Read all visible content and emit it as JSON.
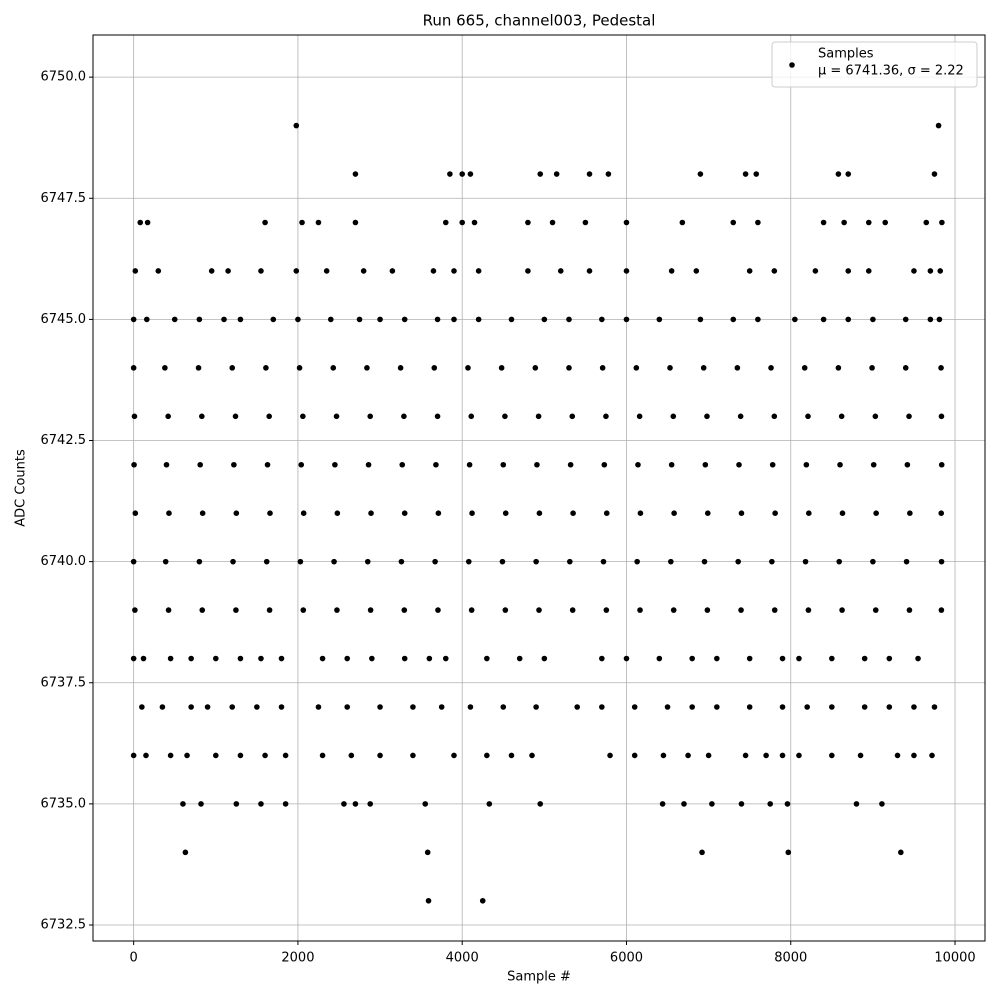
{
  "chart_data": {
    "type": "scatter",
    "title": "Run 665, channel003, Pedestal",
    "xlabel": "Sample #",
    "ylabel": "ADC Counts",
    "xlim": [
      -495,
      10365
    ],
    "ylim": [
      6732.17,
      6750.87
    ],
    "xticks": [
      0,
      2000,
      4000,
      6000,
      8000,
      10000
    ],
    "yticks": [
      6732.5,
      {
        "value": 6735,
        "label": "6735.0"
      },
      6737.5,
      {
        "value": 6740,
        "label": "6740.0"
      },
      6742.5,
      {
        "value": 6745,
        "label": "6745.0"
      },
      6747.5,
      {
        "value": 6750,
        "label": "6750.0"
      }
    ],
    "grid": true,
    "legend": "upper right",
    "legend_note": "μ = 6741.36, σ = 2.22",
    "series": [
      {
        "name": "Samples",
        "color": "#000000",
        "x": [
          0,
          380,
          790,
          1200,
          1610,
          2020,
          2430,
          2840,
          3250,
          3660,
          4070,
          4480,
          4890,
          5300,
          5710,
          6120,
          6530,
          6940,
          7350,
          7760,
          8170,
          8580,
          8990,
          9400,
          9830,
          10,
          420,
          830,
          1240,
          1650,
          2060,
          2470,
          2880,
          3290,
          3700,
          4110,
          4520,
          4930,
          5340,
          5750,
          6160,
          6570,
          6980,
          7390,
          7800,
          8210,
          8620,
          9030,
          9440,
          9835,
          5,
          400,
          810,
          1220,
          1630,
          2040,
          2450,
          2860,
          3270,
          3680,
          4090,
          4500,
          4910,
          5320,
          5730,
          6140,
          6550,
          6960,
          7370,
          7780,
          8190,
          8600,
          9010,
          9420,
          9838,
          20,
          430,
          840,
          1250,
          1660,
          2070,
          2480,
          2890,
          3300,
          3710,
          4120,
          4530,
          4940,
          5350,
          5760,
          6170,
          6580,
          6990,
          7400,
          7810,
          8220,
          8630,
          9040,
          9450,
          9832,
          0,
          390,
          800,
          1210,
          1620,
          2030,
          2440,
          2850,
          3260,
          3670,
          4080,
          4490,
          4900,
          5310,
          5720,
          6130,
          6540,
          6950,
          7360,
          7770,
          8180,
          8590,
          9000,
          9410,
          9836,
          15,
          425,
          835,
          1245,
          1655,
          2065,
          2475,
          2885,
          3295,
          3705,
          4115,
          4525,
          4935,
          5345,
          5755,
          6165,
          6575,
          6985,
          7395,
          7805,
          8215,
          8625,
          9035,
          9445,
          9834,
          0,
          120,
          450,
          700,
          1000,
          1300,
          1550,
          1800,
          2300,
          2600,
          2900,
          3300,
          3600,
          3800,
          4300,
          4700,
          5000,
          5700,
          6000,
          6400,
          6800,
          7100,
          7500,
          7900,
          8100,
          8500,
          8900,
          9200,
          9550,
          0,
          160,
          500,
          800,
          1100,
          1300,
          1700,
          2000,
          2400,
          2750,
          3000,
          3300,
          3700,
          3900,
          4200,
          4600,
          5000,
          5300,
          5700,
          6000,
          6400,
          6900,
          7300,
          7600,
          8050,
          8400,
          8700,
          9000,
          9400,
          9700,
          9810,
          20,
          300,
          950,
          1150,
          1550,
          1980,
          2350,
          2800,
          3150,
          3650,
          3900,
          4200,
          4800,
          5200,
          5550,
          6000,
          6550,
          6850,
          7500,
          7800,
          8300,
          8700,
          8950,
          9500,
          9700,
          9820,
          100,
          350,
          700,
          900,
          1200,
          1500,
          1800,
          2250,
          2600,
          3000,
          3400,
          3750,
          4100,
          4500,
          4900,
          5400,
          5700,
          6100,
          6500,
          6800,
          7100,
          7500,
          7900,
          8200,
          8500,
          8900,
          9200,
          9500,
          9750,
          0,
          150,
          450,
          650,
          1000,
          1300,
          1600,
          1850,
          2300,
          2650,
          3000,
          3400,
          3900,
          4300,
          4600,
          4850,
          5800,
          6100,
          6450,
          6750,
          7000,
          7450,
          7700,
          7900,
          8100,
          8500,
          8850,
          9300,
          9500,
          9720,
          80,
          170,
          1600,
          2050,
          2250,
          2700,
          3800,
          4000,
          4150,
          4800,
          5100,
          5500,
          6000,
          6680,
          7300,
          7600,
          8400,
          8650,
          8950,
          9150,
          9650,
          9840,
          2700,
          3850,
          4000,
          4100,
          4950,
          5150,
          5550,
          5780,
          6900,
          7450,
          7580,
          8580,
          8700,
          9750,
          600,
          820,
          1250,
          1550,
          1850,
          2560,
          2700,
          2880,
          3550,
          4330,
          4950,
          6440,
          6700,
          7040,
          7400,
          7750,
          7960,
          8800,
          9110,
          630,
          3580,
          6920,
          7970,
          9340,
          3590,
          4250,
          1980,
          9800
        ],
        "values": [
          6744,
          6744,
          6744,
          6744,
          6744,
          6744,
          6744,
          6744,
          6744,
          6744,
          6744,
          6744,
          6744,
          6744,
          6744,
          6744,
          6744,
          6744,
          6744,
          6744,
          6744,
          6744,
          6744,
          6744,
          6744,
          6743,
          6743,
          6743,
          6743,
          6743,
          6743,
          6743,
          6743,
          6743,
          6743,
          6743,
          6743,
          6743,
          6743,
          6743,
          6743,
          6743,
          6743,
          6743,
          6743,
          6743,
          6743,
          6743,
          6743,
          6743,
          6742,
          6742,
          6742,
          6742,
          6742,
          6742,
          6742,
          6742,
          6742,
          6742,
          6742,
          6742,
          6742,
          6742,
          6742,
          6742,
          6742,
          6742,
          6742,
          6742,
          6742,
          6742,
          6742,
          6742,
          6742,
          6741,
          6741,
          6741,
          6741,
          6741,
          6741,
          6741,
          6741,
          6741,
          6741,
          6741,
          6741,
          6741,
          6741,
          6741,
          6741,
          6741,
          6741,
          6741,
          6741,
          6741,
          6741,
          6741,
          6741,
          6741,
          6740,
          6740,
          6740,
          6740,
          6740,
          6740,
          6740,
          6740,
          6740,
          6740,
          6740,
          6740,
          6740,
          6740,
          6740,
          6740,
          6740,
          6740,
          6740,
          6740,
          6740,
          6740,
          6740,
          6740,
          6740,
          6739,
          6739,
          6739,
          6739,
          6739,
          6739,
          6739,
          6739,
          6739,
          6739,
          6739,
          6739,
          6739,
          6739,
          6739,
          6739,
          6739,
          6739,
          6739,
          6739,
          6739,
          6739,
          6739,
          6739,
          6739,
          6738,
          6738,
          6738,
          6738,
          6738,
          6738,
          6738,
          6738,
          6738,
          6738,
          6738,
          6738,
          6738,
          6738,
          6738,
          6738,
          6738,
          6738,
          6738,
          6738,
          6738,
          6738,
          6738,
          6738,
          6738,
          6738,
          6738,
          6738,
          6738,
          6745,
          6745,
          6745,
          6745,
          6745,
          6745,
          6745,
          6745,
          6745,
          6745,
          6745,
          6745,
          6745,
          6745,
          6745,
          6745,
          6745,
          6745,
          6745,
          6745,
          6745,
          6745,
          6745,
          6745,
          6745,
          6745,
          6745,
          6745,
          6745,
          6745,
          6745,
          6746,
          6746,
          6746,
          6746,
          6746,
          6746,
          6746,
          6746,
          6746,
          6746,
          6746,
          6746,
          6746,
          6746,
          6746,
          6746,
          6746,
          6746,
          6746,
          6746,
          6746,
          6746,
          6746,
          6746,
          6746,
          6746,
          6737,
          6737,
          6737,
          6737,
          6737,
          6737,
          6737,
          6737,
          6737,
          6737,
          6737,
          6737,
          6737,
          6737,
          6737,
          6737,
          6737,
          6737,
          6737,
          6737,
          6737,
          6737,
          6737,
          6737,
          6737,
          6737,
          6737,
          6737,
          6737,
          6736,
          6736,
          6736,
          6736,
          6736,
          6736,
          6736,
          6736,
          6736,
          6736,
          6736,
          6736,
          6736,
          6736,
          6736,
          6736,
          6736,
          6736,
          6736,
          6736,
          6736,
          6736,
          6736,
          6736,
          6736,
          6736,
          6736,
          6736,
          6736,
          6736,
          6747,
          6747,
          6747,
          6747,
          6747,
          6747,
          6747,
          6747,
          6747,
          6747,
          6747,
          6747,
          6747,
          6747,
          6747,
          6747,
          6747,
          6747,
          6747,
          6747,
          6747,
          6747,
          6748,
          6748,
          6748,
          6748,
          6748,
          6748,
          6748,
          6748,
          6748,
          6748,
          6748,
          6748,
          6748,
          6748,
          6735,
          6735,
          6735,
          6735,
          6735,
          6735,
          6735,
          6735,
          6735,
          6735,
          6735,
          6735,
          6735,
          6735,
          6735,
          6735,
          6735,
          6735,
          6735,
          6734,
          6734,
          6734,
          6734,
          6734,
          6733,
          6733,
          6749,
          6749
        ]
      }
    ]
  }
}
